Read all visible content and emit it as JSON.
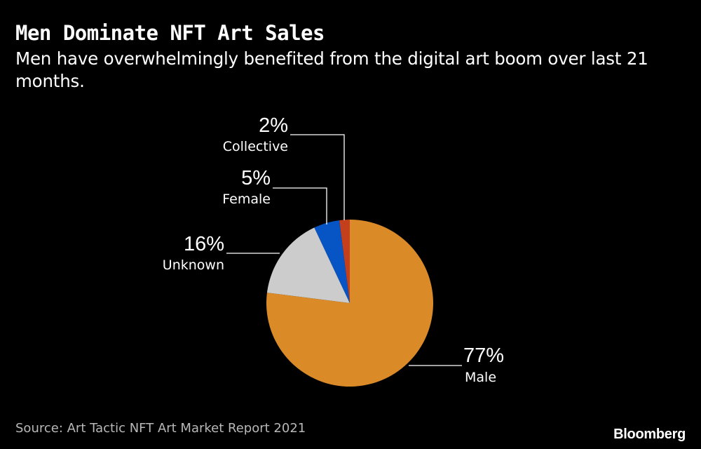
{
  "header": {
    "title": "Men Dominate NFT Art Sales",
    "subtitle": "Men have overwhelmingly benefited from the digital art boom over last 21 months."
  },
  "chart_data": {
    "type": "pie",
    "title": "Men Dominate NFT Art Sales",
    "subtitle": "Men have overwhelmingly benefited from the digital art boom over last 21 months.",
    "slices": [
      {
        "label": "Male",
        "value": 77,
        "display": "77%",
        "color": "#DA8A26"
      },
      {
        "label": "Unknown",
        "value": 16,
        "display": "16%",
        "color": "#CCCCCC"
      },
      {
        "label": "Female",
        "value": 5,
        "display": "5%",
        "color": "#0754C4"
      },
      {
        "label": "Collective",
        "value": 2,
        "display": "2%",
        "color": "#C4401C"
      }
    ],
    "start": "12 o'clock",
    "direction": "clockwise"
  },
  "footer": {
    "source": "Source: Art Tactic NFT Art Market Report 2021",
    "brand": "Bloomberg"
  },
  "colors": {
    "background": "#000000",
    "text": "#FFFFFF",
    "leader": "#FFFFFF"
  }
}
